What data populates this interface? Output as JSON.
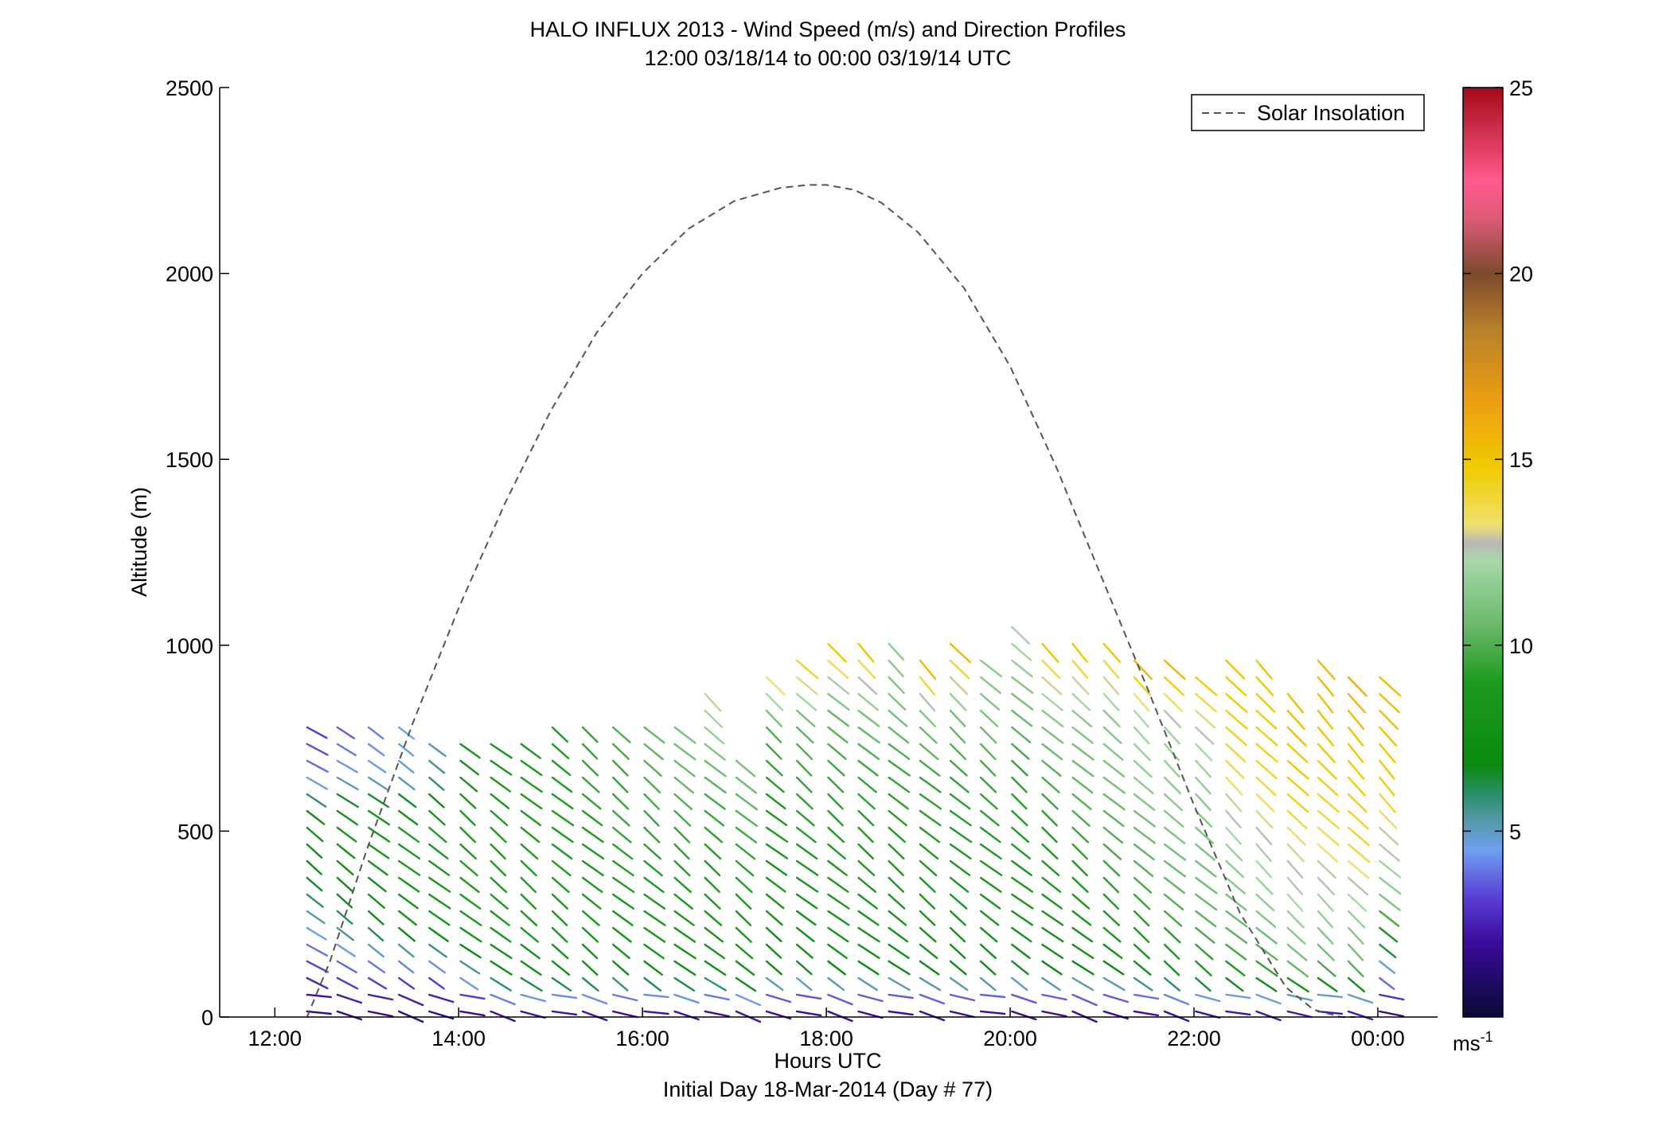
{
  "chart_data": {
    "type": "scatter",
    "title": "HALO INFLUX 2013 - Wind Speed (m/s) and Direction Profiles",
    "subtitle": "12:00 03/18/14 to 00:00 03/19/14  UTC",
    "xlabel": "Hours UTC",
    "xlabel2": "Initial Day 18-Mar-2014 (Day # 77)",
    "ylabel": "Altitude (m)",
    "xlim": [
      11.4,
      24.65
    ],
    "ylim": [
      0,
      2500
    ],
    "x_ticks": [
      12,
      14,
      16,
      18,
      20,
      22,
      24
    ],
    "x_tick_labels": [
      "12:00",
      "14:00",
      "16:00",
      "18:00",
      "20:00",
      "22:00",
      "00:00"
    ],
    "y_ticks": [
      0,
      500,
      1000,
      1500,
      2000,
      2500
    ],
    "y_tick_labels": [
      "0",
      "500",
      "1000",
      "1500",
      "2000",
      "2500"
    ],
    "legend": {
      "label": "Solar Insolation",
      "placement": "top-right"
    },
    "colorbar": {
      "range": [
        0,
        25
      ],
      "ticks": [
        5,
        10,
        15,
        20,
        25
      ],
      "tick_labels": [
        "5",
        "10",
        "15",
        "20",
        "25"
      ],
      "unit_label": "ms",
      "unit_exp": "-1"
    },
    "solar_insolation": {
      "x": [
        12.35,
        12.6,
        13.0,
        13.5,
        14.0,
        14.5,
        15.0,
        15.5,
        16.0,
        16.5,
        17.0,
        17.5,
        17.8,
        18.0,
        18.3,
        18.6,
        19.0,
        19.5,
        20.0,
        20.5,
        21.0,
        21.5,
        22.0,
        22.5,
        23.0,
        23.3,
        23.6,
        23.75
      ],
      "y": [
        0,
        150,
        450,
        790,
        1100,
        1380,
        1630,
        1840,
        2000,
        2120,
        2195,
        2230,
        2238,
        2238,
        2225,
        2190,
        2110,
        1960,
        1750,
        1480,
        1180,
        880,
        570,
        280,
        80,
        20,
        0,
        0
      ]
    },
    "wind_profiles": {
      "note": "Wind barbs: one vertical profile per time column; line segments show direction, colour shows speed (m/s).",
      "times": [
        12.35,
        12.68,
        13.02,
        13.35,
        13.68,
        14.02,
        14.35,
        14.68,
        15.02,
        15.35,
        15.68,
        16.02,
        16.35,
        16.68,
        17.02,
        17.35,
        17.68,
        18.02,
        18.35,
        18.68,
        19.02,
        19.35,
        19.68,
        20.02,
        20.35,
        20.68,
        21.02,
        21.35,
        21.68,
        22.02,
        22.35,
        22.68,
        23.02,
        23.35,
        23.68,
        24.02
      ],
      "top_altitude_m": [
        800,
        800,
        800,
        780,
        770,
        770,
        770,
        770,
        790,
        790,
        790,
        790,
        790,
        870,
        730,
        940,
        970,
        1010,
        1010,
        1010,
        980,
        1010,
        980,
        1060,
        1010,
        1010,
        1010,
        980,
        960,
        940,
        980,
        970,
        910,
        970,
        940,
        950
      ],
      "speed_m_s": [
        [
          1.5,
          3.0,
          5.0,
          7.0,
          8.0,
          4.0,
          3.0
        ],
        [
          1.5,
          3.5,
          6.0,
          7.5,
          8.5,
          4.5,
          3.5
        ],
        [
          1.5,
          3.5,
          7.0,
          8.0,
          8.5,
          4.5,
          4.0
        ],
        [
          1.5,
          3.5,
          7.5,
          8.5,
          9.0,
          5.0,
          4.5
        ],
        [
          1.5,
          3.5,
          8.0,
          8.5,
          9.0,
          6.0,
          5.0
        ],
        [
          1.5,
          5.0,
          8.5,
          9.0,
          9.0,
          8.0,
          8.0
        ],
        [
          1.5,
          7.0,
          8.5,
          9.0,
          9.0,
          8.5,
          8.0
        ],
        [
          1.5,
          7.5,
          8.5,
          9.0,
          9.0,
          9.0,
          8.5
        ],
        [
          1.5,
          7.5,
          8.5,
          9.0,
          9.0,
          9.0,
          9.0
        ],
        [
          1.5,
          7.5,
          8.5,
          9.0,
          9.0,
          9.5,
          9.5
        ],
        [
          1.5,
          7.0,
          8.5,
          9.0,
          9.5,
          9.5,
          10.0
        ],
        [
          1.5,
          7.5,
          8.5,
          9.0,
          9.5,
          10.0,
          10.5
        ],
        [
          1.5,
          7.5,
          8.5,
          9.0,
          9.5,
          10.5,
          11.0
        ],
        [
          1.5,
          7.5,
          8.5,
          9.0,
          9.5,
          11.0,
          13.0
        ],
        [
          1.5,
          7.5,
          8.5,
          9.0,
          9.5,
          10.5,
          11.0
        ],
        [
          1.5,
          7.0,
          8.0,
          8.5,
          9.0,
          10.0,
          14.0
        ],
        [
          1.5,
          7.0,
          8.0,
          9.0,
          9.5,
          10.5,
          14.5
        ],
        [
          1.5,
          7.5,
          8.5,
          9.0,
          9.5,
          10.5,
          15.0
        ],
        [
          1.5,
          7.5,
          8.5,
          9.0,
          9.5,
          11.0,
          15.0
        ],
        [
          1.5,
          7.5,
          8.5,
          9.0,
          9.5,
          11.0,
          11.5
        ],
        [
          1.5,
          7.5,
          8.5,
          9.0,
          9.5,
          11.0,
          16.0
        ],
        [
          1.5,
          7.5,
          8.5,
          9.0,
          9.5,
          11.0,
          15.5
        ],
        [
          1.5,
          7.5,
          8.5,
          9.0,
          9.5,
          11.0,
          11.5
        ],
        [
          1.5,
          7.5,
          8.5,
          9.0,
          9.5,
          11.0,
          12.5
        ],
        [
          1.5,
          7.5,
          8.5,
          9.0,
          10.0,
          11.5,
          15.0
        ],
        [
          1.5,
          7.5,
          8.5,
          9.5,
          10.5,
          11.5,
          15.0
        ],
        [
          1.5,
          7.5,
          9.0,
          10.0,
          11.0,
          11.5,
          15.0
        ],
        [
          1.5,
          8.0,
          9.5,
          10.5,
          11.5,
          12.0,
          16.0
        ],
        [
          1.5,
          8.5,
          10.0,
          11.0,
          11.5,
          12.0,
          15.5
        ],
        [
          1.5,
          9.0,
          10.5,
          11.0,
          11.5,
          12.5,
          15.0
        ],
        [
          1.5,
          9.5,
          11.0,
          12.0,
          13.5,
          14.5,
          15.0
        ],
        [
          1.5,
          10.0,
          11.5,
          12.5,
          14.0,
          14.5,
          15.0
        ],
        [
          1.5,
          10.5,
          12.0,
          13.0,
          14.5,
          15.0,
          15.5
        ],
        [
          1.5,
          10.5,
          12.0,
          13.5,
          14.5,
          15.0,
          15.5
        ],
        [
          1.5,
          10.5,
          12.0,
          14.0,
          14.5,
          15.0,
          16.0
        ],
        [
          1.5,
          5.0,
          11.0,
          12.5,
          14.5,
          15.0,
          15.5
        ]
      ]
    }
  }
}
